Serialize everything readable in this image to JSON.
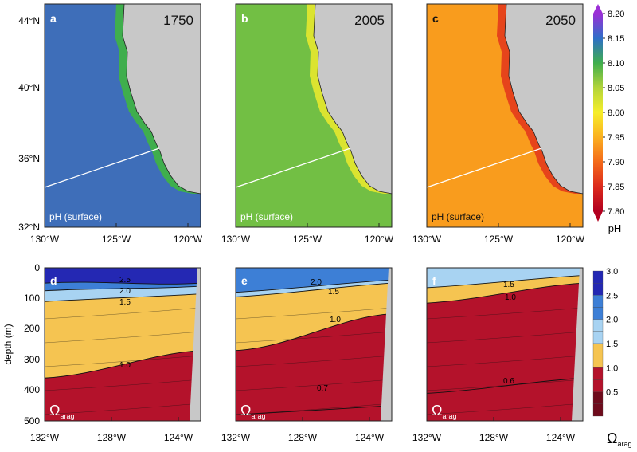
{
  "colors": {
    "land": "#c8c8c8",
    "ph_stops": [
      [
        7.8,
        "#b2001f"
      ],
      [
        7.85,
        "#dc2a1c"
      ],
      [
        7.9,
        "#f46a1a"
      ],
      [
        7.95,
        "#fbb020"
      ],
      [
        8.0,
        "#f6ee2a"
      ],
      [
        8.05,
        "#b3d43a"
      ],
      [
        8.1,
        "#3fae4d"
      ],
      [
        8.15,
        "#2e6fc8"
      ],
      [
        8.2,
        "#9b2fd6"
      ]
    ],
    "omega_bins": [
      {
        "lo": 0.0,
        "hi": 0.5,
        "color": "#6e0b1c"
      },
      {
        "lo": 0.5,
        "hi": 1.0,
        "color": "#b4122b"
      },
      {
        "lo": 1.0,
        "hi": 1.5,
        "color": "#f5c451"
      },
      {
        "lo": 1.5,
        "hi": 2.0,
        "color": "#a8d3f2"
      },
      {
        "lo": 2.0,
        "hi": 2.5,
        "color": "#3d7fd6"
      },
      {
        "lo": 2.5,
        "hi": 3.0,
        "color": "#2428b3"
      }
    ]
  },
  "chart_data": [
    {
      "type": "heatmap",
      "panel": "a",
      "title": "1750",
      "label": "pH (surface)",
      "variable": "pH",
      "x_ticks": [
        "130°W",
        "125°W",
        "120°W"
      ],
      "y_ticks": [
        "32°N",
        "36°N",
        "40°N",
        "44°N"
      ],
      "xlim": [
        -130,
        -119
      ],
      "ylim": [
        32,
        44.5
      ],
      "offshore_ph": 8.16,
      "nearshore_ph": 8.1
    },
    {
      "type": "heatmap",
      "panel": "b",
      "title": "2005",
      "label": "pH (surface)",
      "variable": "pH",
      "x_ticks": [
        "130°W",
        "125°W",
        "120°W"
      ],
      "xlim": [
        -130,
        -119
      ],
      "ylim": [
        32,
        44.5
      ],
      "offshore_ph": 8.09,
      "nearshore_ph": 8.02
    },
    {
      "type": "heatmap",
      "panel": "c",
      "title": "2050",
      "label": "pH (surface)",
      "variable": "pH",
      "x_ticks": [
        "130°W",
        "125°W",
        "120°W"
      ],
      "xlim": [
        -130,
        -119
      ],
      "ylim": [
        32,
        44.5
      ],
      "offshore_ph": 7.95,
      "nearshore_ph": 7.87
    },
    {
      "type": "heatmap",
      "panel": "d",
      "label": "Ω",
      "label_sub": "arag",
      "variable": "Ω_arag",
      "y_axis_label": "depth (m)",
      "x_ticks": [
        "132°W",
        "128°W",
        "124°W"
      ],
      "y_ticks": [
        "0",
        "100",
        "200",
        "300",
        "400",
        "500"
      ],
      "xlim": [
        -132.5,
        -123.2
      ],
      "ylim": [
        0,
        500
      ],
      "contour_labels": [
        "2.5",
        "2.0",
        "1.5",
        "1.0"
      ],
      "isolines_depth_m": {
        "2.5": [
          50,
          50
        ],
        "2.0": [
          75,
          60
        ],
        "1.5": [
          110,
          85
        ],
        "1.0": [
          360,
          270
        ]
      }
    },
    {
      "type": "heatmap",
      "panel": "e",
      "label": "Ω",
      "label_sub": "arag",
      "variable": "Ω_arag",
      "x_ticks": [
        "132°W",
        "128°W",
        "124°W"
      ],
      "xlim": [
        -132.5,
        -123.2
      ],
      "ylim": [
        0,
        500
      ],
      "contour_labels": [
        "2.0",
        "1.5",
        "1.0",
        "0.7"
      ],
      "isolines_depth_m": {
        "2.0": [
          80,
          40
        ],
        "1.5": [
          95,
          50
        ],
        "1.0": [
          270,
          150
        ],
        "0.7": [
          480,
          450
        ]
      }
    },
    {
      "type": "heatmap",
      "panel": "f",
      "label": "Ω",
      "label_sub": "arag",
      "variable": "Ω_arag",
      "x_ticks": [
        "132°W",
        "128°W",
        "124°W"
      ],
      "xlim": [
        -132.5,
        -123.2
      ],
      "ylim": [
        0,
        500
      ],
      "contour_labels": [
        "1.5",
        "1.0",
        "0.6"
      ],
      "isolines_depth_m": {
        "1.5": [
          65,
          25
        ],
        "1.0": [
          115,
          50
        ],
        "0.6": [
          410,
          360
        ]
      }
    }
  ],
  "colorbars": {
    "ph": {
      "ticks": [
        "8.20",
        "8.15",
        "8.10",
        "8.05",
        "8.00",
        "7.95",
        "7.90",
        "7.85",
        "7.80"
      ],
      "label": "pH"
    },
    "omega": {
      "ticks": [
        "3.0",
        "2.5",
        "2.0",
        "1.5",
        "1.0",
        "0.5"
      ],
      "label": "Ω",
      "label_sub": "arag"
    }
  }
}
